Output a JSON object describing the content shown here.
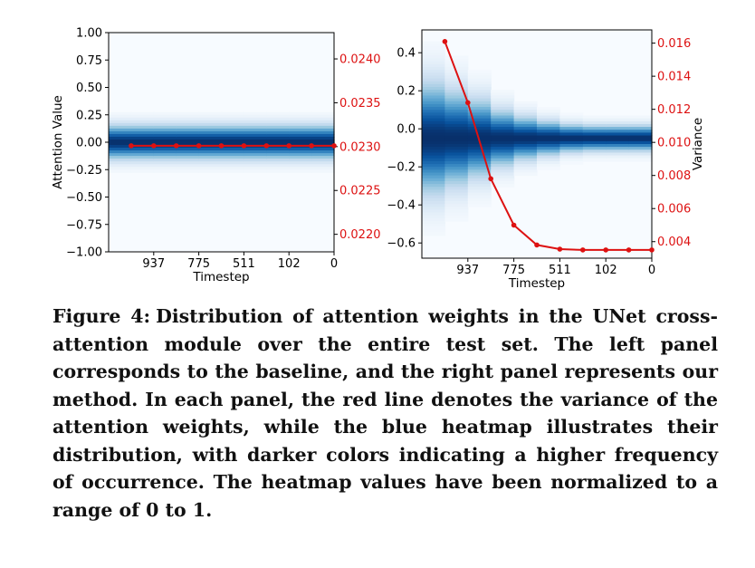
{
  "chart_data": [
    {
      "type": "heatmap",
      "panel": "left",
      "xlabel": "Timestep",
      "ylabel": "Attention Value",
      "xticks": [
        "937",
        "775",
        "511",
        "102",
        "0"
      ],
      "yticks": [
        "1.00",
        "0.75",
        "0.50",
        "0.25",
        "0.00",
        "−0.25",
        "−0.50",
        "−0.75",
        "−1.00"
      ],
      "ylim": [
        -1.0,
        1.0
      ],
      "y2ticks": [
        "0.0240",
        "0.0235",
        "0.0230",
        "0.0225",
        "0.0220"
      ],
      "y2lim": [
        0.0218,
        0.0243
      ],
      "y2label": "",
      "variance_line": {
        "color": "#dd1111",
        "values": [
          0.02301,
          0.02301,
          0.02301,
          0.02301,
          0.02301,
          0.02301,
          0.02301,
          0.02301,
          0.02301,
          0.02301
        ]
      },
      "heatmap_columns": 10,
      "heatmap_center": 0.0,
      "heatmap_spread": [
        0.14,
        0.14,
        0.14,
        0.14,
        0.14,
        0.14,
        0.14,
        0.14,
        0.14,
        0.14
      ],
      "colormap": "Blues",
      "grid": false
    },
    {
      "type": "heatmap",
      "panel": "right",
      "xlabel": "Timestep",
      "ylabel": "",
      "xticks": [
        "937",
        "775",
        "511",
        "102",
        "0"
      ],
      "yticks": [
        "0.4",
        "0.2",
        "0.0",
        "−0.2",
        "−0.4",
        "−0.6"
      ],
      "ylim": [
        -0.68,
        0.52
      ],
      "y2ticks": [
        "0.016",
        "0.014",
        "0.012",
        "0.010",
        "0.008",
        "0.006",
        "0.004"
      ],
      "y2lim": [
        0.003,
        0.0168
      ],
      "y2label": "Variance",
      "variance_line": {
        "color": "#dd1111",
        "values": [
          0.0161,
          0.0124,
          0.0078,
          0.005,
          0.0038,
          0.00355,
          0.0035,
          0.0035,
          0.0035,
          0.0035
        ]
      },
      "heatmap_columns": 10,
      "heatmap_center": -0.05,
      "heatmap_spread": [
        0.26,
        0.22,
        0.18,
        0.13,
        0.1,
        0.08,
        0.065,
        0.06,
        0.06,
        0.06
      ],
      "colormap": "Blues",
      "grid": false
    }
  ],
  "caption": {
    "label": "Figure 4:",
    "text": "Distribution of attention weights in the UNet cross-attention module over the entire test set. The left panel corresponds to the baseline, and the right panel represents our method. In each panel, the red line denotes the variance of the attention weights, while the blue heatmap illustrates their distribution, with darker colors indicating a higher frequency of occurrence. The heatmap values have been normalized to a range of 0 to 1."
  }
}
